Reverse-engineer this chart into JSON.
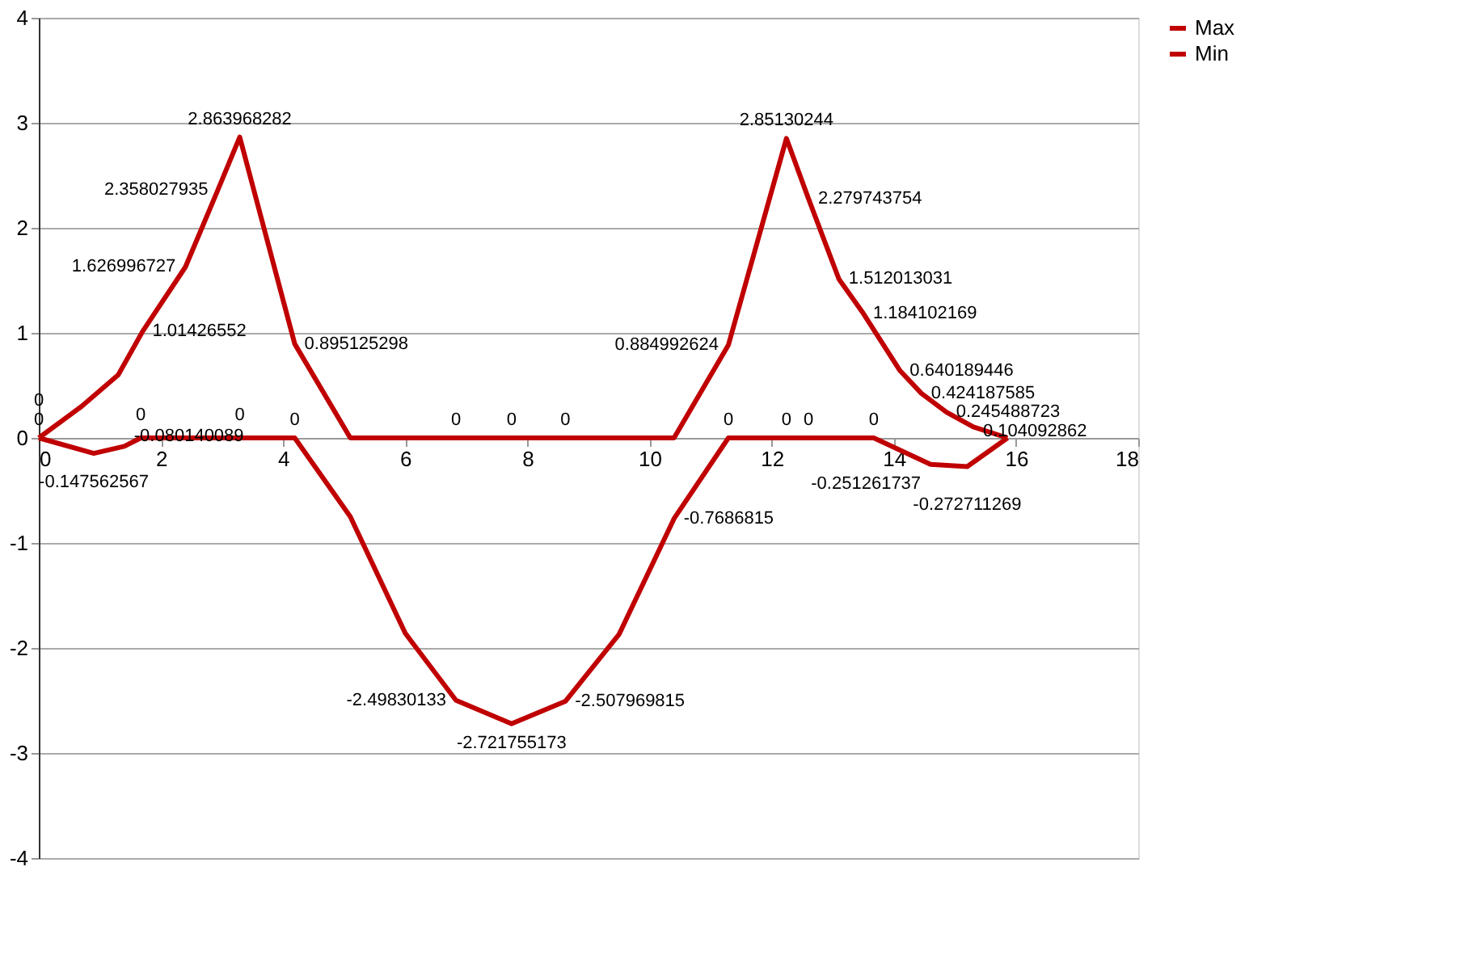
{
  "chart_data": {
    "type": "line",
    "xlim": [
      0,
      18
    ],
    "xticks": [
      0,
      2,
      4,
      6,
      8,
      10,
      12,
      14,
      16,
      18
    ],
    "ylim": [
      -4,
      4
    ],
    "yticks": [
      -4,
      -3,
      -2,
      -1,
      0,
      1,
      2,
      3,
      4
    ],
    "grid": "y",
    "legend": "right",
    "marker": "none",
    "line_style": "solid",
    "series": [
      {
        "name": "Max",
        "color": "#c00000",
        "x": [
          0,
          0.7,
          1.3,
          1.7,
          2.4,
          2.93,
          3.29,
          4.19,
          5.1,
          6.0,
          6.83,
          7.74,
          8.62,
          9.5,
          10.4,
          11.29,
          12.24,
          12.6,
          13.1,
          13.5,
          14.1,
          14.45,
          14.86,
          15.3,
          15.86
        ],
        "values": [
          0,
          0.3,
          0.6,
          1.01426552,
          1.626996727,
          2.358027935,
          2.863968282,
          0.895125298,
          0,
          0,
          0,
          0,
          0,
          0,
          0,
          0.884992624,
          2.85130244,
          2.279743754,
          1.512013031,
          1.184102169,
          0.640189446,
          0.424187585,
          0.245488723,
          0.104092862,
          0
        ],
        "value_labels": [
          "0",
          null,
          null,
          "1.01426552",
          "1.626996727",
          "2.358027935",
          "2.863968282",
          "0.895125298",
          null,
          null,
          "0",
          "0",
          "0",
          null,
          null,
          "0.884992624",
          "2.85130244",
          "2.279743754",
          "1.512013031",
          "1.184102169",
          "0.640189446",
          "0.424187585",
          "0.245488723",
          "0.104092862",
          null
        ]
      },
      {
        "name": "Min",
        "color": "#c00000",
        "x": [
          0,
          0.9,
          1.4,
          1.67,
          3.29,
          4.19,
          5.1,
          6.0,
          6.83,
          7.74,
          8.62,
          9.5,
          10.4,
          11.29,
          12.24,
          12.6,
          13.67,
          14.6,
          15.2,
          15.86
        ],
        "values": [
          0,
          -0.147562567,
          -0.080140089,
          0,
          0,
          0,
          -0.75,
          -1.86,
          -2.49830133,
          -2.721755173,
          -2.507969815,
          -1.87,
          -0.7686815,
          0,
          0,
          0,
          0,
          -0.251261737,
          -0.272711269,
          0
        ],
        "value_labels": [
          "0",
          "-0.147562567",
          "-0.080140089",
          "0",
          "0",
          "0",
          null,
          null,
          "-2.49830133",
          "-2.721755173",
          "-2.507969815",
          null,
          "-0.7686815",
          "0",
          "0",
          "0",
          "0",
          "-0.251261737",
          "-0.272711269",
          null
        ]
      }
    ]
  }
}
